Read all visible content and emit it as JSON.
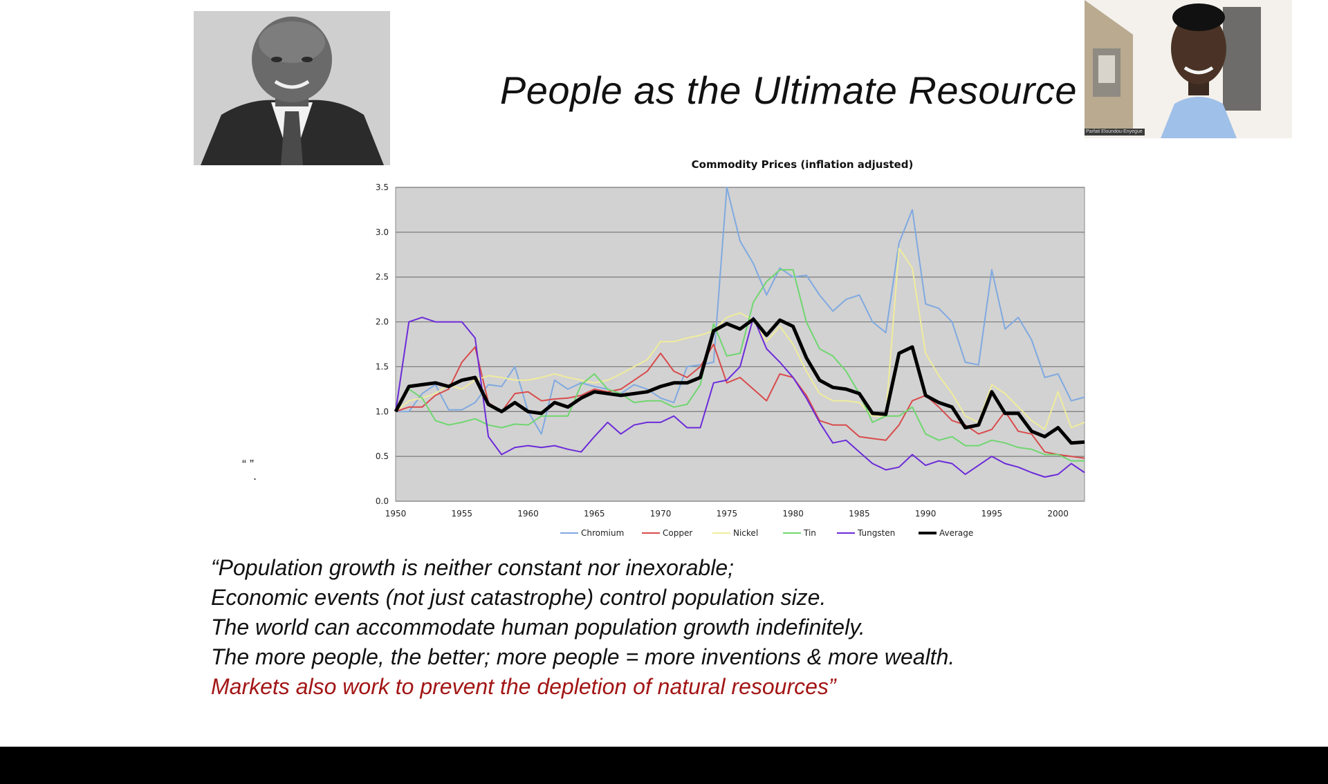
{
  "slide": {
    "title": "People as the Ultimate Resource",
    "small_quote_marks": "“ ”",
    "small_dot": ".",
    "quote_lines": [
      "“Population growth is neither constant nor inexorable;",
      "Economic events (not just catastrophe) control population size.",
      "The world can accommodate human population growth indefinitely.",
      "The more people, the better; more people = more inventions & more wealth.",
      "Markets also work to prevent the depletion of natural resources”"
    ],
    "quote_highlight_color": "#a31515"
  },
  "video": {
    "participant_name": "Parfait Eloundou-Enyegue"
  },
  "chart_data": {
    "type": "line",
    "title": "Commodity Prices (inflation adjusted)",
    "xlabel": "",
    "ylabel": "",
    "xlim": [
      1950,
      2002
    ],
    "ylim": [
      0,
      3.5
    ],
    "x_ticks": [
      "1950",
      "1955",
      "1960",
      "1965",
      "1970",
      "1975",
      "1980",
      "1985",
      "1990",
      "1995",
      "2000"
    ],
    "y_ticks": [
      "0.0",
      "0.5",
      "1.0",
      "1.5",
      "2.0",
      "2.5",
      "3.0",
      "3.5"
    ],
    "grid": true,
    "legend_position": "bottom",
    "x": [
      1950,
      1951,
      1952,
      1953,
      1954,
      1955,
      1956,
      1957,
      1958,
      1959,
      1960,
      1961,
      1962,
      1963,
      1964,
      1965,
      1966,
      1967,
      1968,
      1969,
      1970,
      1971,
      1972,
      1973,
      1974,
      1975,
      1976,
      1977,
      1978,
      1979,
      1980,
      1981,
      1982,
      1983,
      1984,
      1985,
      1986,
      1987,
      1988,
      1989,
      1990,
      1991,
      1992,
      1993,
      1994,
      1995,
      1996,
      1997,
      1998,
      1999,
      2000,
      2001,
      2002
    ],
    "series": [
      {
        "name": "Chromium",
        "color": "#7fa9e0",
        "width": 2,
        "values": [
          1.0,
          1.0,
          1.2,
          1.3,
          1.02,
          1.02,
          1.1,
          1.3,
          1.28,
          1.5,
          1.0,
          0.75,
          1.35,
          1.25,
          1.32,
          1.28,
          1.25,
          1.2,
          1.3,
          1.25,
          1.15,
          1.1,
          1.5,
          1.52,
          1.55,
          3.5,
          2.9,
          2.65,
          2.3,
          2.6,
          2.5,
          2.52,
          2.3,
          2.12,
          2.25,
          2.3,
          2.0,
          1.88,
          2.88,
          3.25,
          2.2,
          2.15,
          2.0,
          1.55,
          1.52,
          2.58,
          1.92,
          2.05,
          1.8,
          1.38,
          1.42,
          1.12,
          1.16
        ]
      },
      {
        "name": "Copper",
        "color": "#d94a4a",
        "width": 2,
        "values": [
          1.0,
          1.05,
          1.05,
          1.18,
          1.25,
          1.55,
          1.72,
          1.1,
          1.0,
          1.2,
          1.22,
          1.12,
          1.14,
          1.15,
          1.18,
          1.25,
          1.22,
          1.25,
          1.35,
          1.45,
          1.65,
          1.45,
          1.38,
          1.5,
          1.75,
          1.32,
          1.38,
          1.25,
          1.12,
          1.42,
          1.38,
          1.18,
          0.9,
          0.85,
          0.85,
          0.72,
          0.7,
          0.68,
          0.85,
          1.12,
          1.18,
          1.05,
          0.9,
          0.85,
          0.75,
          0.8,
          1.0,
          0.78,
          0.75,
          0.55,
          0.52,
          0.5,
          0.48
        ]
      },
      {
        "name": "Nickel",
        "color": "#f0ec9c",
        "width": 2,
        "values": [
          1.0,
          1.12,
          1.15,
          1.2,
          1.3,
          1.25,
          1.35,
          1.4,
          1.38,
          1.35,
          1.35,
          1.38,
          1.42,
          1.38,
          1.35,
          1.32,
          1.35,
          1.42,
          1.5,
          1.58,
          1.78,
          1.78,
          1.82,
          1.85,
          1.9,
          2.05,
          2.1,
          2.02,
          1.78,
          1.95,
          1.75,
          1.45,
          1.2,
          1.12,
          1.12,
          1.1,
          0.95,
          0.95,
          2.82,
          2.6,
          1.65,
          1.4,
          1.2,
          0.95,
          0.88,
          1.3,
          1.2,
          1.05,
          0.9,
          0.8,
          1.22,
          0.82,
          0.88
        ]
      },
      {
        "name": "Tin",
        "color": "#6fd66f",
        "width": 2,
        "values": [
          1.0,
          1.25,
          1.15,
          0.9,
          0.85,
          0.88,
          0.92,
          0.85,
          0.82,
          0.86,
          0.85,
          0.95,
          0.95,
          0.95,
          1.3,
          1.42,
          1.25,
          1.2,
          1.1,
          1.12,
          1.12,
          1.05,
          1.08,
          1.3,
          1.98,
          1.62,
          1.65,
          2.22,
          2.45,
          2.58,
          2.58,
          2.0,
          1.7,
          1.62,
          1.45,
          1.2,
          0.88,
          0.95,
          0.95,
          1.05,
          0.75,
          0.68,
          0.72,
          0.62,
          0.62,
          0.68,
          0.65,
          0.6,
          0.58,
          0.52,
          0.52,
          0.45,
          0.45
        ]
      },
      {
        "name": "Tungsten",
        "color": "#6b2ad9",
        "width": 2,
        "values": [
          1.0,
          2.0,
          2.05,
          2.0,
          2.0,
          2.0,
          1.82,
          0.72,
          0.52,
          0.6,
          0.62,
          0.6,
          0.62,
          0.58,
          0.55,
          0.72,
          0.88,
          0.75,
          0.85,
          0.88,
          0.88,
          0.95,
          0.82,
          0.82,
          1.32,
          1.35,
          1.5,
          2.05,
          1.7,
          1.55,
          1.38,
          1.15,
          0.88,
          0.65,
          0.68,
          0.55,
          0.42,
          0.35,
          0.38,
          0.52,
          0.4,
          0.45,
          0.42,
          0.3,
          0.4,
          0.5,
          0.42,
          0.38,
          0.32,
          0.27,
          0.3,
          0.42,
          0.32
        ]
      },
      {
        "name": "Average",
        "color": "#000000",
        "width": 5,
        "values": [
          1.0,
          1.28,
          1.3,
          1.32,
          1.28,
          1.35,
          1.38,
          1.08,
          1.0,
          1.1,
          1.0,
          0.98,
          1.1,
          1.05,
          1.15,
          1.22,
          1.2,
          1.18,
          1.2,
          1.22,
          1.28,
          1.32,
          1.32,
          1.38,
          1.9,
          1.98,
          1.92,
          2.03,
          1.85,
          2.02,
          1.95,
          1.6,
          1.35,
          1.27,
          1.25,
          1.2,
          0.98,
          0.97,
          1.65,
          1.72,
          1.18,
          1.1,
          1.05,
          0.82,
          0.85,
          1.22,
          0.98,
          0.98,
          0.78,
          0.72,
          0.82,
          0.65,
          0.66
        ]
      }
    ]
  }
}
